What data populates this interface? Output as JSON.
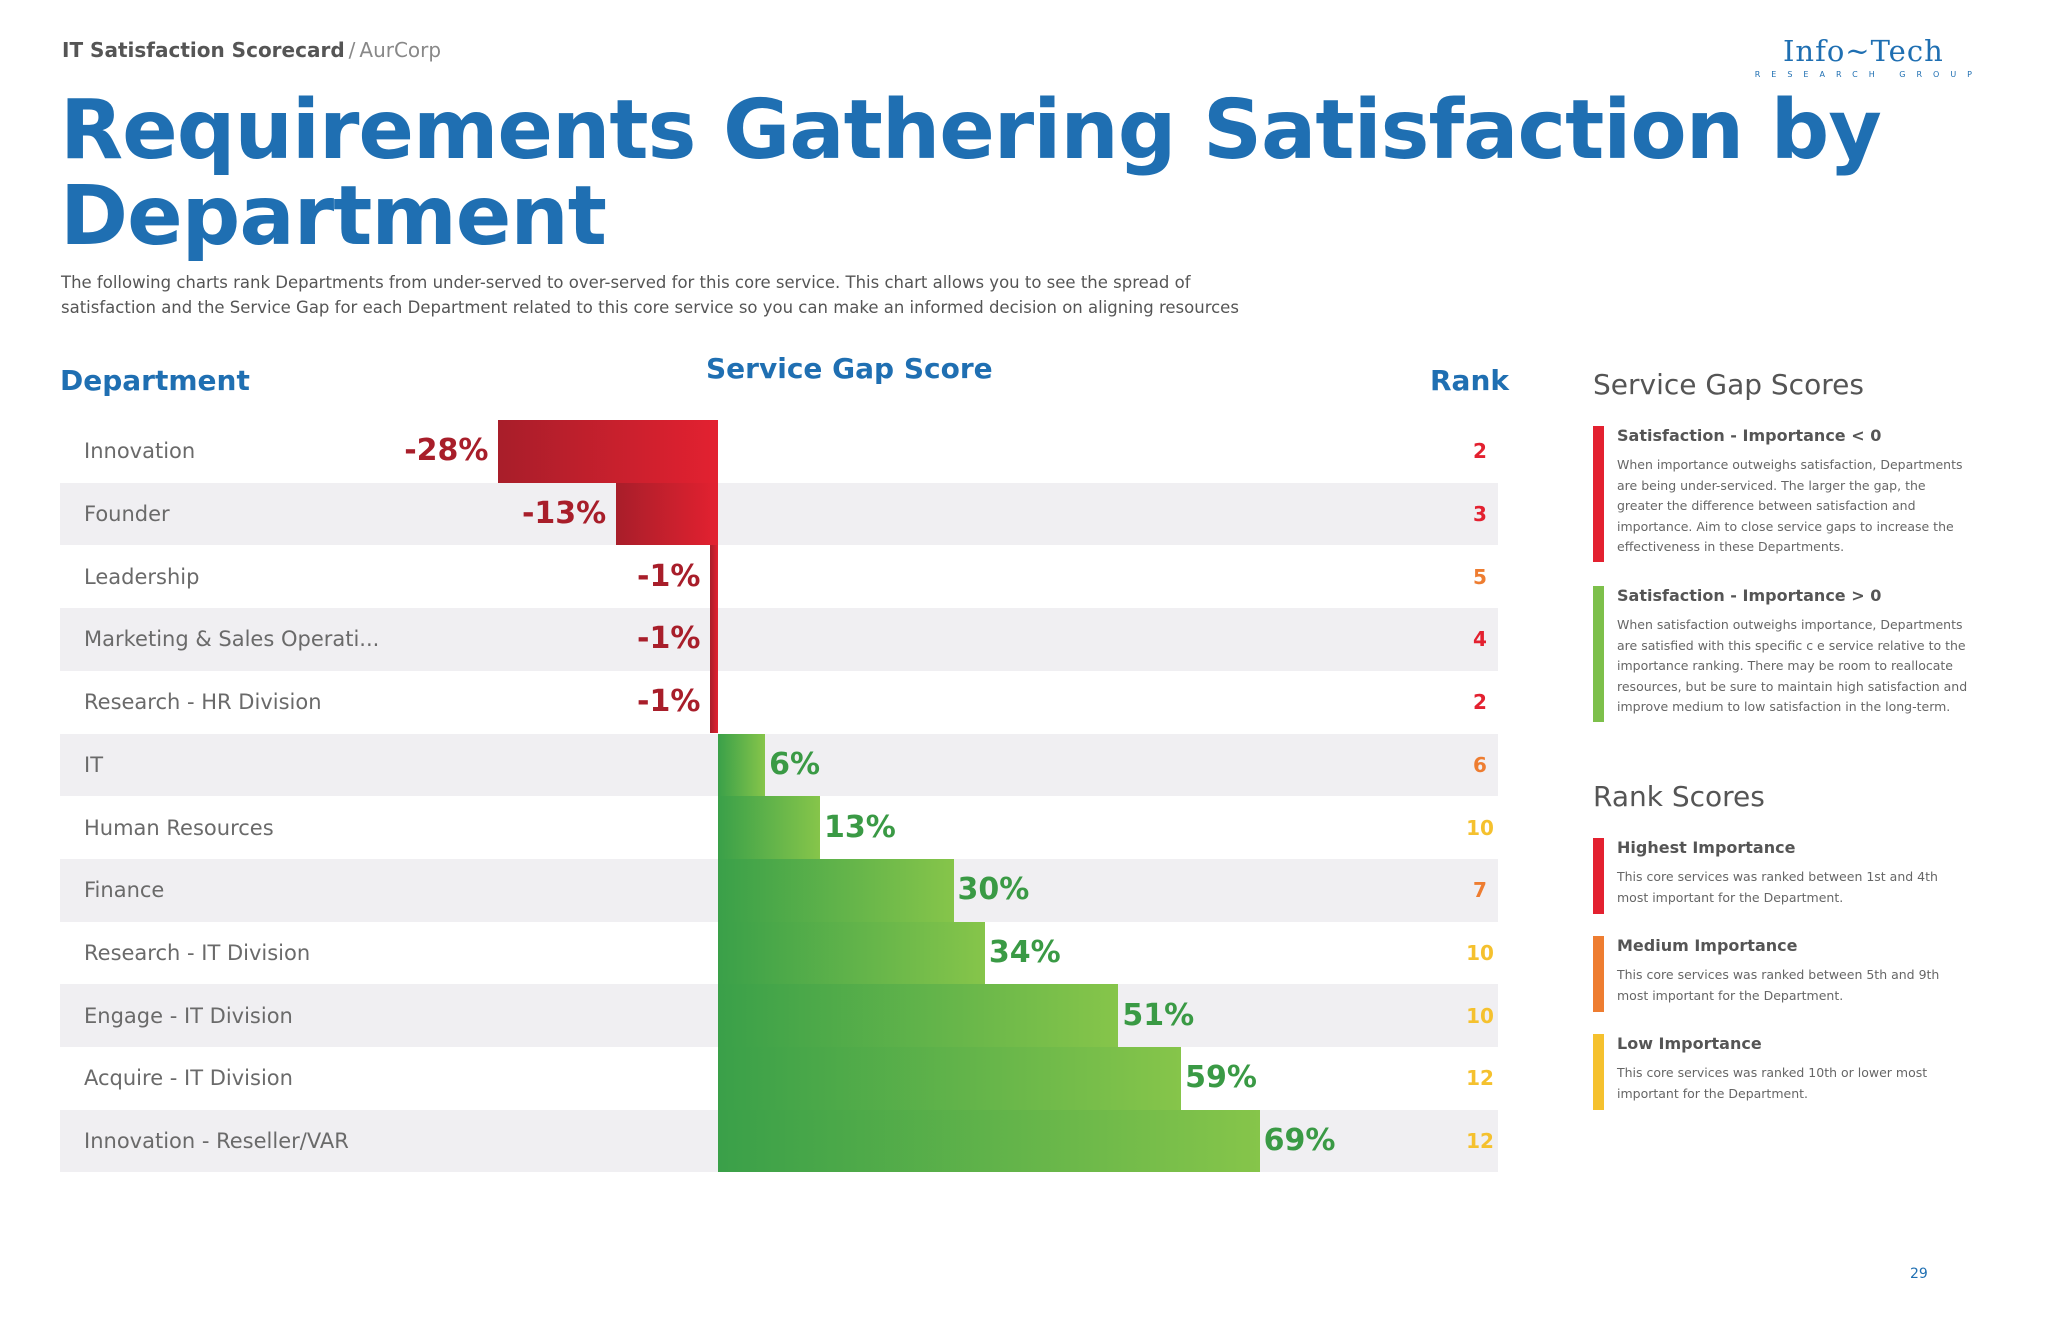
{
  "header": {
    "breadcrumb_main": "IT Satisfaction Scorecard",
    "breadcrumb_separator": "/",
    "breadcrumb_org": "AurCorp",
    "logo_main": "Info~Tech",
    "logo_sub": "RESEARCH GROUP"
  },
  "page_title": "Requirements Gathering Satisfaction by Department",
  "subtitle": "The following charts rank Departments from under-served to over-served for this core service. This chart allows you to see the spread of satisfaction and the Service Gap for each Department related to this core service so you can make an informed decision on aligning resources",
  "columns": {
    "department": "Department",
    "service_gap": "Service Gap Score",
    "rank": "Rank"
  },
  "colors": {
    "title_blue": "#1f6fb2",
    "negative": "#a81e2a",
    "positive": "#3a9a45",
    "rank_high": "#e32130",
    "rank_medium": "#ee7d31",
    "rank_low": "#f5c12e",
    "legend_green": "#7dc04b"
  },
  "chart_data": {
    "type": "bar",
    "orientation": "horizontal",
    "categories": [
      "Innovation",
      "Founder",
      "Leadership",
      "Marketing & Sales Operati...",
      "Research - HR Division",
      "IT",
      "Human Resources",
      "Finance",
      "Research - IT Division",
      "Engage - IT Division",
      "Acquire - IT Division",
      "Innovation - Reseller/VAR"
    ],
    "values": [
      -28,
      -13,
      -1,
      -1,
      -1,
      6,
      13,
      30,
      34,
      51,
      59,
      69
    ],
    "value_labels": [
      "-28%",
      "-13%",
      "-1%",
      "-1%",
      "-1%",
      "6%",
      "13%",
      "30%",
      "34%",
      "51%",
      "59%",
      "69%"
    ],
    "ranks": [
      2,
      3,
      5,
      4,
      2,
      6,
      10,
      7,
      10,
      10,
      12,
      12
    ],
    "rank_levels": [
      "high",
      "high",
      "medium",
      "high",
      "high",
      "medium",
      "low",
      "medium",
      "low",
      "low",
      "low",
      "low"
    ],
    "unit": "%",
    "xlim": [
      -28,
      69
    ],
    "title": "Service Gap Score",
    "grid": false,
    "legend": "right"
  },
  "legend": {
    "gap_title": "Service Gap Scores",
    "gap_items": [
      {
        "heading": "Satisfaction - Importance < 0",
        "text": "When importance outweighs satisfaction, Departments are being under-serviced. The larger the gap, the greater the difference between satisfaction and importance. Aim to close service gaps to increase the effectiveness in these Departments.",
        "color": "#e32130"
      },
      {
        "heading": "Satisfaction - Importance > 0",
        "text": "When satisfaction outweighs importance, Departments are satisfied with this specific c e service relative to the importance ranking. There may be room to reallocate resources, but be sure to maintain high satisfaction and improve medium to low satisfaction in the long-term.",
        "color": "#7dc04b"
      }
    ],
    "rank_title": "Rank Scores",
    "rank_items": [
      {
        "heading": "Highest Importance",
        "text": "This core services was ranked between 1st and 4th most important for the Department.",
        "color": "#e32130"
      },
      {
        "heading": "Medium Importance",
        "text": "This core services was ranked between 5th and 9th most important for the Department.",
        "color": "#ee7d31"
      },
      {
        "heading": "Low Importance",
        "text": "This core services was ranked 10th or lower most important for the Department.",
        "color": "#f5c12e"
      }
    ]
  },
  "page_number": "29"
}
